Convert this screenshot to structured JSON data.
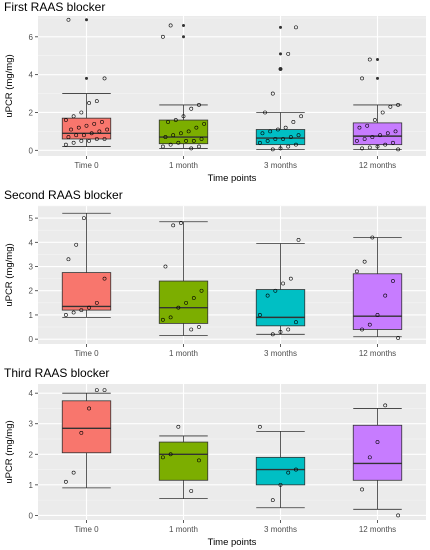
{
  "chart_data": [
    {
      "type": "box",
      "title": "First RAAS blocker",
      "xlabel": "Time points",
      "ylabel": "uPCR (mg/mg)",
      "ylim": [
        -0.3,
        7.1
      ],
      "yticks": [
        0,
        2,
        4,
        6
      ],
      "categories": [
        "Time 0",
        "1 month",
        "3 months",
        "12 months"
      ],
      "colors": [
        "#F8766D",
        "#7CAE00",
        "#00BFC4",
        "#C77CFF"
      ],
      "grid": true,
      "boxes": [
        {
          "min": 0.2,
          "q1": 0.6,
          "median": 0.9,
          "q3": 1.7,
          "max": 3.0,
          "outliers": [
            3.8,
            6.9
          ]
        },
        {
          "min": 0.1,
          "q1": 0.35,
          "median": 0.7,
          "q3": 1.6,
          "max": 2.4,
          "outliers": [
            6.0,
            6.6
          ]
        },
        {
          "min": 0.05,
          "q1": 0.3,
          "median": 0.65,
          "q3": 1.1,
          "max": 2.0,
          "outliers": [
            4.3,
            5.1,
            6.5
          ]
        },
        {
          "min": 0.05,
          "q1": 0.3,
          "median": 0.75,
          "q3": 1.45,
          "max": 2.4,
          "outliers": [
            3.8,
            4.8
          ]
        }
      ],
      "points": [
        [
          0.3,
          0.4,
          0.5,
          0.5,
          0.6,
          0.6,
          0.7,
          0.8,
          0.8,
          0.9,
          1.0,
          1.1,
          1.1,
          1.2,
          1.3,
          1.4,
          1.5,
          1.6,
          1.8,
          2.0,
          2.5,
          2.6,
          3.8,
          6.9
        ],
        [
          0.1,
          0.2,
          0.2,
          0.3,
          0.4,
          0.5,
          0.5,
          0.6,
          0.7,
          0.8,
          0.9,
          1.0,
          1.2,
          1.4,
          1.5,
          1.6,
          1.8,
          2.2,
          2.4,
          6.0,
          6.6
        ],
        [
          0.05,
          0.1,
          0.2,
          0.3,
          0.4,
          0.5,
          0.6,
          0.6,
          0.7,
          0.8,
          0.9,
          1.0,
          1.1,
          1.2,
          1.5,
          1.8,
          2.0,
          3.0,
          4.3,
          5.1,
          6.5
        ],
        [
          0.05,
          0.1,
          0.15,
          0.2,
          0.3,
          0.4,
          0.5,
          0.6,
          0.7,
          0.8,
          0.9,
          1.0,
          1.2,
          1.3,
          1.6,
          2.0,
          2.3,
          2.4,
          3.8,
          4.8
        ]
      ]
    },
    {
      "type": "box",
      "title": "Second RAAS blocker",
      "xlabel": "",
      "ylabel": "uPCR (mg/mg)",
      "ylim": [
        -0.2,
        5.5
      ],
      "yticks": [
        0,
        1,
        2,
        3,
        4,
        5
      ],
      "categories": [
        "Time 0",
        "1 month",
        "3 months",
        "12 months"
      ],
      "colors": [
        "#F8766D",
        "#7CAE00",
        "#00BFC4",
        "#C77CFF"
      ],
      "grid": true,
      "boxes": [
        {
          "min": 0.9,
          "q1": 1.2,
          "median": 1.35,
          "q3": 2.75,
          "max": 5.2,
          "outliers": []
        },
        {
          "min": 0.15,
          "q1": 0.65,
          "median": 1.3,
          "q3": 2.4,
          "max": 4.85,
          "outliers": []
        },
        {
          "min": 0.2,
          "q1": 0.55,
          "median": 0.9,
          "q3": 2.05,
          "max": 3.95,
          "outliers": []
        },
        {
          "min": 0.1,
          "q1": 0.4,
          "median": 0.95,
          "q3": 2.7,
          "max": 4.2,
          "outliers": []
        }
      ],
      "points": [
        [
          1.0,
          1.1,
          1.2,
          1.3,
          1.5,
          2.5,
          3.3,
          3.9,
          5.0
        ],
        [
          0.4,
          0.5,
          0.8,
          0.9,
          1.3,
          1.5,
          1.7,
          2.0,
          3.0,
          4.7,
          4.8
        ],
        [
          0.2,
          0.3,
          0.4,
          0.7,
          1.0,
          1.8,
          2.0,
          2.3,
          2.5,
          4.1
        ],
        [
          0.05,
          0.4,
          0.6,
          1.0,
          1.8,
          2.4,
          2.8,
          3.2,
          4.2
        ]
      ]
    },
    {
      "type": "box",
      "title": "Third RAAS blocker",
      "xlabel": "Time points",
      "ylabel": "uPCR (mg/mg)",
      "ylim": [
        -0.15,
        4.3
      ],
      "yticks": [
        0,
        1,
        2,
        3,
        4
      ],
      "categories": [
        "Time 0",
        "1 month",
        "3 months",
        "12 months"
      ],
      "colors": [
        "#F8766D",
        "#7CAE00",
        "#00BFC4",
        "#C77CFF"
      ],
      "grid": true,
      "boxes": [
        {
          "min": 0.9,
          "q1": 2.05,
          "median": 2.85,
          "q3": 3.75,
          "max": 4.0,
          "outliers": []
        },
        {
          "min": 0.55,
          "q1": 1.15,
          "median": 2.0,
          "q3": 2.4,
          "max": 2.6,
          "outliers": []
        },
        {
          "min": 0.25,
          "q1": 1.0,
          "median": 1.5,
          "q3": 1.9,
          "max": 2.75,
          "outliers": []
        },
        {
          "min": 0.2,
          "q1": 1.15,
          "median": 1.7,
          "q3": 2.95,
          "max": 3.5,
          "outliers": []
        }
      ],
      "points": [
        [
          1.1,
          1.4,
          2.7,
          3.5,
          4.1,
          4.1
        ],
        [
          0.8,
          1.8,
          1.9,
          2.0,
          2.9
        ],
        [
          0.5,
          1.0,
          1.4,
          1.5,
          2.9
        ],
        [
          0.0,
          0.85,
          1.9,
          2.4,
          3.6
        ]
      ]
    }
  ]
}
